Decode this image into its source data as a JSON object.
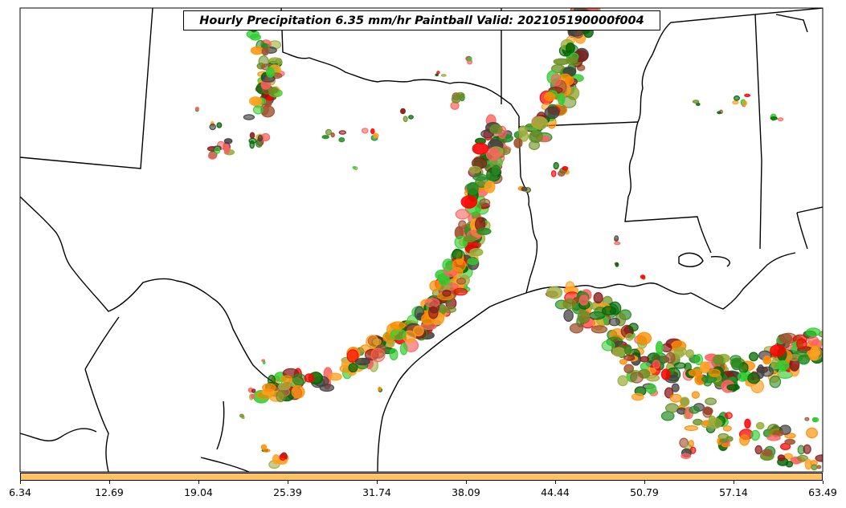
{
  "title": "Hourly Precipitation 6.35 mm/hr Paintball Valid: 202105190000f004",
  "colorbar": {
    "color": "#ffc266",
    "ticks": [
      "6.34",
      "12.69",
      "19.04",
      "25.39",
      "31.74",
      "38.09",
      "44.44",
      "50.79",
      "57.14",
      "63.49"
    ]
  },
  "map": {
    "region": "South-central United States: Texas, Louisiana and the northwestern Gulf of Mexico",
    "paintball_colors": [
      "#ff8c00",
      "#ffa020",
      "#ff0000",
      "#8b1a1a",
      "#a0522d",
      "#6b8e23",
      "#9aad3a",
      "#228b22",
      "#006400",
      "#32cd32",
      "#ff6060",
      "#404040"
    ]
  }
}
